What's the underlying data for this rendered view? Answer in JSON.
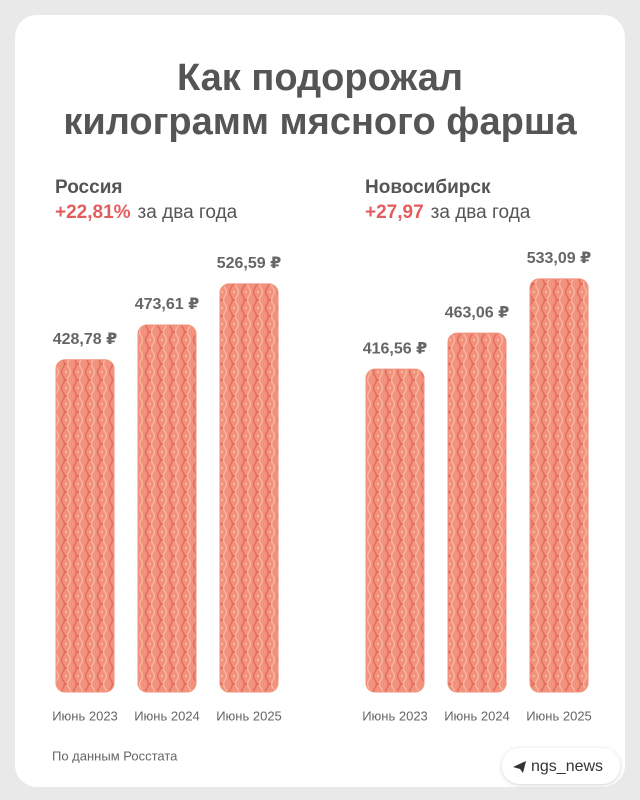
{
  "title_lines": [
    "Как подорожал",
    "килограмм мясного фарша"
  ],
  "chart_data": [
    {
      "type": "bar",
      "title": "Россия",
      "change": "+22,81%",
      "change_note": "за два года",
      "categories": [
        "Июнь 2023",
        "Июнь 2024",
        "Июнь 2025"
      ],
      "values": [
        428.78,
        473.61,
        526.59
      ],
      "value_labels": [
        "428,78 ₽",
        "473,61 ₽",
        "526,59 ₽"
      ],
      "color": "#f2917c"
    },
    {
      "type": "bar",
      "title": "Новосибирск",
      "change": "+27,97",
      "change_note": "за два года",
      "categories": [
        "Июнь 2023",
        "Июнь 2024",
        "Июнь 2025"
      ],
      "values": [
        416.56,
        463.06,
        533.09
      ],
      "value_labels": [
        "416,56 ₽",
        "463,06 ₽",
        "533,09 ₽"
      ],
      "color": "#f2917c"
    }
  ],
  "source": "По данным Росстата",
  "credit": "ngs_news"
}
